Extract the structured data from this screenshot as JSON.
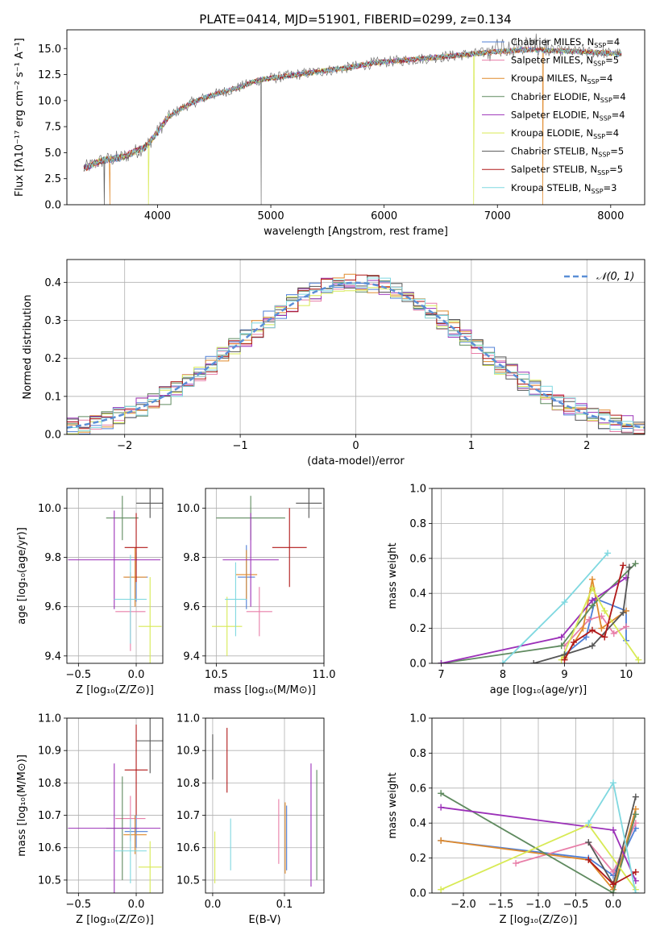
{
  "figure": {
    "title": "PLATE=0414, MJD=51901, FIBERID=0299, z=0.134"
  },
  "colors": {
    "Chabrier MILES": "#4f7fd6",
    "Salpeter MILES": "#e87ea8",
    "Kroupa MILES": "#e08a2c",
    "Chabrier ELODIE": "#5f8a5f",
    "Salpeter ELODIE": "#9b30b8",
    "Kroupa ELODIE": "#d8ea55",
    "Chabrier STELIB": "#555555",
    "Salpeter STELIB": "#b01818",
    "Kroupa STELIB": "#7fd8e0",
    "data": "#6e6e6e",
    "normal": "#5b8fd6"
  },
  "chart_data": [
    {
      "id": "spectrum",
      "type": "line",
      "xlabel": "wavelength [Angstrom, rest frame]",
      "ylabel": "Flux [fλ10⁻¹⁷ erg cm⁻² s⁻¹ A⁻¹]",
      "xlim": [
        3200,
        8300
      ],
      "ylim": [
        0,
        16.8
      ],
      "xticks": [
        4000,
        5000,
        6000,
        7000,
        8000
      ],
      "yticks": [
        0.0,
        2.5,
        5.0,
        7.5,
        10.0,
        12.5,
        15.0
      ],
      "legend": [
        {
          "label": "Chabrier MILES, N",
          "sub": "SSP",
          "tail": "=4"
        },
        {
          "label": "Salpeter MILES, N",
          "sub": "SSP",
          "tail": "=5"
        },
        {
          "label": "Kroupa MILES, N",
          "sub": "SSP",
          "tail": "=4"
        },
        {
          "label": "Chabrier ELODIE, N",
          "sub": "SSP",
          "tail": "=4"
        },
        {
          "label": "Salpeter ELODIE, N",
          "sub": "SSP",
          "tail": "=4"
        },
        {
          "label": "Kroupa ELODIE, N",
          "sub": "SSP",
          "tail": "=4"
        },
        {
          "label": "Chabrier STELIB, N",
          "sub": "SSP",
          "tail": "=5"
        },
        {
          "label": "Salpeter STELIB, N",
          "sub": "SSP",
          "tail": "=5"
        },
        {
          "label": "Kroupa STELIB, N",
          "sub": "SSP",
          "tail": "=3"
        }
      ],
      "continuum": {
        "x": [
          3350,
          3500,
          3700,
          3900,
          4000,
          4100,
          4300,
          4500,
          4700,
          4900,
          5100,
          5300,
          5500,
          5700,
          5900,
          6100,
          6300,
          6500,
          6700,
          6900,
          7100,
          7300,
          7500,
          7700,
          7900,
          8100
        ],
        "y": [
          3.5,
          4.2,
          4.6,
          5.6,
          7.0,
          8.5,
          9.8,
          10.6,
          11.2,
          12.0,
          12.3,
          12.6,
          12.9,
          13.2,
          13.6,
          13.8,
          14.0,
          14.2,
          14.4,
          14.6,
          14.8,
          14.9,
          14.8,
          14.7,
          14.6,
          14.5
        ]
      },
      "dips": [
        {
          "x": 3530,
          "model": "Chabrier STELIB"
        },
        {
          "x": 3580,
          "model": "Kroupa MILES"
        },
        {
          "x": 3920,
          "model": "Kroupa ELODIE"
        },
        {
          "x": 4915,
          "model": "data"
        },
        {
          "x": 6790,
          "model": "Kroupa ELODIE"
        },
        {
          "x": 7400,
          "model": "Kroupa MILES"
        }
      ]
    },
    {
      "id": "residuals",
      "type": "step",
      "xlabel": "(data-model)/error",
      "ylabel": "Normed distribution",
      "xlim": [
        -2.5,
        2.5
      ],
      "ylim": [
        0,
        0.46
      ],
      "xticks": [
        -2,
        -1,
        0,
        1,
        2
      ],
      "yticks": [
        0.0,
        0.1,
        0.2,
        0.3,
        0.4
      ],
      "legend": "𝒩(0, 1)",
      "bins": 50
    },
    {
      "id": "age-vs-Z",
      "type": "scatter",
      "xlabel": "Z [log₁₀(Z/Z⊙)]",
      "ylabel": "age  [log₁₀(age/yr)]",
      "xlim": [
        -0.6,
        0.23
      ],
      "ylim": [
        9.37,
        10.08
      ],
      "xticks": [
        -0.5,
        0.0
      ],
      "yticks": [
        9.4,
        9.6,
        9.8,
        10.0
      ],
      "series": [
        {
          "name": "Chabrier MILES",
          "x": 0.0,
          "xerr": 0.1,
          "y": 9.72,
          "yerr": 0.1
        },
        {
          "name": "Salpeter MILES",
          "x": -0.05,
          "xerr": 0.13,
          "y": 9.58,
          "yerr": 0.16
        },
        {
          "name": "Kroupa MILES",
          "x": -0.01,
          "xerr": 0.1,
          "y": 9.72,
          "yerr": 0.12
        },
        {
          "name": "Chabrier ELODIE",
          "x": -0.12,
          "xerr": 0.14,
          "y": 9.96,
          "yerr": 0.09
        },
        {
          "name": "Salpeter ELODIE",
          "x": -0.19,
          "xerr": 0.4,
          "y": 9.79,
          "yerr": 0.2
        },
        {
          "name": "Kroupa ELODIE",
          "x": 0.12,
          "xerr": 0.1,
          "y": 9.52,
          "yerr": 0.2
        },
        {
          "name": "Chabrier STELIB",
          "x": 0.12,
          "xerr": 0.12,
          "y": 10.02,
          "yerr": 0.06
        },
        {
          "name": "Salpeter STELIB",
          "x": 0.0,
          "xerr": 0.1,
          "y": 9.84,
          "yerr": 0.14
        },
        {
          "name": "Kroupa STELIB",
          "x": -0.05,
          "xerr": 0.14,
          "y": 9.63,
          "yerr": 0.18
        }
      ]
    },
    {
      "id": "age-vs-mass",
      "type": "scatter",
      "xlabel": "mass [log₁₀(M/M⊙)]",
      "ylabel": "",
      "xlim": [
        10.45,
        11.0
      ],
      "ylim": [
        9.37,
        10.08
      ],
      "xticks": [
        10.5,
        11.0
      ],
      "yticks": [
        9.4,
        9.6,
        9.8,
        10.0
      ],
      "series": [
        {
          "name": "Chabrier MILES",
          "x": 10.64,
          "xerr": 0.04,
          "y": 9.72,
          "yerr": 0.13
        },
        {
          "name": "Salpeter MILES",
          "x": 10.7,
          "xerr": 0.06,
          "y": 9.58,
          "yerr": 0.1
        },
        {
          "name": "Kroupa MILES",
          "x": 10.64,
          "xerr": 0.05,
          "y": 9.73,
          "yerr": 0.1
        },
        {
          "name": "Chabrier ELODIE",
          "x": 10.66,
          "xerr": 0.16,
          "y": 9.96,
          "yerr": 0.09
        },
        {
          "name": "Salpeter ELODIE",
          "x": 10.66,
          "xerr": 0.13,
          "y": 9.79,
          "yerr": 0.19
        },
        {
          "name": "Kroupa ELODIE",
          "x": 10.55,
          "xerr": 0.07,
          "y": 9.52,
          "yerr": 0.12
        },
        {
          "name": "Chabrier STELIB",
          "x": 10.93,
          "xerr": 0.06,
          "y": 10.02,
          "yerr": 0.06
        },
        {
          "name": "Salpeter STELIB",
          "x": 10.84,
          "xerr": 0.08,
          "y": 9.84,
          "yerr": 0.16
        },
        {
          "name": "Kroupa STELIB",
          "x": 10.59,
          "xerr": 0.05,
          "y": 9.63,
          "yerr": 0.15
        }
      ]
    },
    {
      "id": "weight-vs-age",
      "type": "line",
      "xlabel": "age  [log₁₀(age/yr)]",
      "ylabel": "mass weight",
      "xlim": [
        6.85,
        10.3
      ],
      "ylim": [
        0.0,
        1.0
      ],
      "xticks": [
        7,
        8,
        9,
        10
      ],
      "yticks": [
        0.0,
        0.2,
        0.4,
        0.6,
        0.8,
        1.0
      ],
      "series": [
        {
          "name": "Chabrier MILES",
          "x": [
            9.0,
            9.35,
            9.5,
            10.0,
            10.0
          ],
          "y": [
            0.05,
            0.15,
            0.37,
            0.3,
            0.13
          ]
        },
        {
          "name": "Salpeter MILES",
          "x": [
            9.0,
            9.4,
            9.6,
            9.8,
            10.0
          ],
          "y": [
            0.1,
            0.25,
            0.27,
            0.17,
            0.21
          ]
        },
        {
          "name": "Kroupa MILES",
          "x": [
            9.0,
            9.3,
            9.45,
            9.6,
            10.0
          ],
          "y": [
            0.03,
            0.2,
            0.48,
            0.2,
            0.3
          ]
        },
        {
          "name": "Chabrier ELODIE",
          "x": [
            7.0,
            8.95,
            9.45,
            10.15
          ],
          "y": [
            0.0,
            0.1,
            0.33,
            0.57
          ]
        },
        {
          "name": "Salpeter ELODIE",
          "x": [
            7.0,
            8.95,
            9.45,
            10.0
          ],
          "y": [
            0.0,
            0.15,
            0.36,
            0.49
          ]
        },
        {
          "name": "Kroupa ELODIE",
          "x": [
            8.95,
            9.45,
            9.65,
            10.2
          ],
          "y": [
            0.02,
            0.43,
            0.3,
            0.02
          ]
        },
        {
          "name": "Chabrier STELIB",
          "x": [
            8.5,
            9.0,
            9.45,
            9.95,
            10.05
          ],
          "y": [
            0.0,
            0.05,
            0.1,
            0.29,
            0.55
          ]
        },
        {
          "name": "Salpeter STELIB",
          "x": [
            9.0,
            9.15,
            9.45,
            9.65,
            9.95
          ],
          "y": [
            0.02,
            0.12,
            0.19,
            0.15,
            0.56
          ]
        },
        {
          "name": "Kroupa STELIB",
          "x": [
            8.0,
            9.0,
            9.7
          ],
          "y": [
            0.0,
            0.35,
            0.63
          ]
        }
      ]
    },
    {
      "id": "mass-vs-Z",
      "type": "scatter",
      "xlabel": "Z [log₁₀(Z/Z⊙)]",
      "ylabel": "mass [log₁₀(M/M⊙)]",
      "xlim": [
        -0.6,
        0.23
      ],
      "ylim": [
        10.46,
        11.0
      ],
      "xticks": [
        -0.5,
        0.0
      ],
      "yticks": [
        10.5,
        10.6,
        10.7,
        10.8,
        10.9,
        11.0
      ],
      "series": [
        {
          "name": "Chabrier MILES",
          "x": 0.0,
          "xerr": 0.1,
          "y": 10.65,
          "yerr": 0.05
        },
        {
          "name": "Salpeter MILES",
          "x": -0.05,
          "xerr": 0.13,
          "y": 10.69,
          "yerr": 0.07
        },
        {
          "name": "Kroupa MILES",
          "x": -0.01,
          "xerr": 0.1,
          "y": 10.64,
          "yerr": 0.06
        },
        {
          "name": "Chabrier ELODIE",
          "x": -0.12,
          "xerr": 0.14,
          "y": 10.66,
          "yerr": 0.16
        },
        {
          "name": "Salpeter ELODIE",
          "x": -0.19,
          "xerr": 0.4,
          "y": 10.66,
          "yerr": 0.2
        },
        {
          "name": "Kroupa ELODIE",
          "x": 0.12,
          "xerr": 0.1,
          "y": 10.54,
          "yerr": 0.08
        },
        {
          "name": "Chabrier STELIB",
          "x": 0.12,
          "xerr": 0.12,
          "y": 10.93,
          "yerr": 0.1
        },
        {
          "name": "Salpeter STELIB",
          "x": 0.0,
          "xerr": 0.1,
          "y": 10.84,
          "yerr": 0.14
        },
        {
          "name": "Kroupa STELIB",
          "x": -0.05,
          "xerr": 0.14,
          "y": 10.59,
          "yerr": 0.1
        }
      ]
    },
    {
      "id": "mass-vs-ebv",
      "type": "scatter",
      "xlabel": "E(B-V)",
      "ylabel": "",
      "xlim": [
        -0.01,
        0.155
      ],
      "ylim": [
        10.46,
        11.0
      ],
      "xticks": [
        0.0,
        0.1
      ],
      "yticks": [
        10.5,
        10.6,
        10.7,
        10.8,
        10.9,
        11.0
      ],
      "series": [
        {
          "name": "Chabrier MILES",
          "x": 0.103,
          "y": 10.63,
          "yerr": 0.1
        },
        {
          "name": "Salpeter MILES",
          "x": 0.092,
          "y": 10.65,
          "yerr": 0.1
        },
        {
          "name": "Kroupa MILES",
          "x": 0.101,
          "y": 10.63,
          "yerr": 0.11
        },
        {
          "name": "Chabrier ELODIE",
          "x": 0.145,
          "y": 10.67,
          "yerr": 0.17
        },
        {
          "name": "Salpeter ELODIE",
          "x": 0.137,
          "y": 10.67,
          "yerr": 0.19
        },
        {
          "name": "Kroupa ELODIE",
          "x": 0.003,
          "y": 10.57,
          "yerr": 0.08
        },
        {
          "name": "Chabrier STELIB",
          "x": 0.0,
          "y": 10.88,
          "yerr": 0.07
        },
        {
          "name": "Salpeter STELIB",
          "x": 0.02,
          "y": 10.87,
          "yerr": 0.1
        },
        {
          "name": "Kroupa STELIB",
          "x": 0.025,
          "y": 10.61,
          "yerr": 0.08
        }
      ]
    },
    {
      "id": "weight-vs-Z",
      "type": "line",
      "xlabel": "Z [log₁₀(Z/Z⊙)]",
      "ylabel": "mass weight",
      "xlim": [
        -2.42,
        0.42
      ],
      "ylim": [
        0.0,
        1.0
      ],
      "xticks": [
        -2.0,
        -1.5,
        -1.0,
        -0.5,
        0.0
      ],
      "yticks": [
        0.0,
        0.2,
        0.4,
        0.6,
        0.8,
        1.0
      ],
      "series": [
        {
          "name": "Chabrier MILES",
          "x": [
            -2.3,
            -0.33,
            0.0,
            0.3
          ],
          "y": [
            0.3,
            0.2,
            0.1,
            0.37
          ]
        },
        {
          "name": "Salpeter MILES",
          "x": [
            -1.3,
            -0.33,
            0.0,
            0.3
          ],
          "y": [
            0.17,
            0.29,
            0.12,
            0.4
          ]
        },
        {
          "name": "Kroupa MILES",
          "x": [
            -2.3,
            -0.33,
            0.0,
            0.3
          ],
          "y": [
            0.3,
            0.19,
            0.02,
            0.48
          ]
        },
        {
          "name": "Chabrier ELODIE",
          "x": [
            -2.3,
            0.0,
            0.3
          ],
          "y": [
            0.57,
            0.0,
            0.45
          ]
        },
        {
          "name": "Salpeter ELODIE",
          "x": [
            -2.3,
            0.0,
            0.3
          ],
          "y": [
            0.49,
            0.36,
            0.07
          ]
        },
        {
          "name": "Kroupa ELODIE",
          "x": [
            -2.3,
            -0.33,
            0.3
          ],
          "y": [
            0.02,
            0.39,
            0.02
          ]
        },
        {
          "name": "Chabrier STELIB",
          "x": [
            -0.33,
            0.0,
            0.3
          ],
          "y": [
            0.29,
            0.05,
            0.55
          ]
        },
        {
          "name": "Salpeter STELIB",
          "x": [
            -0.33,
            0.0,
            0.3
          ],
          "y": [
            0.19,
            0.05,
            0.12
          ]
        },
        {
          "name": "Kroupa STELIB",
          "x": [
            -0.33,
            0.0,
            0.3
          ],
          "y": [
            0.4,
            0.63,
            0.0
          ]
        }
      ]
    }
  ]
}
